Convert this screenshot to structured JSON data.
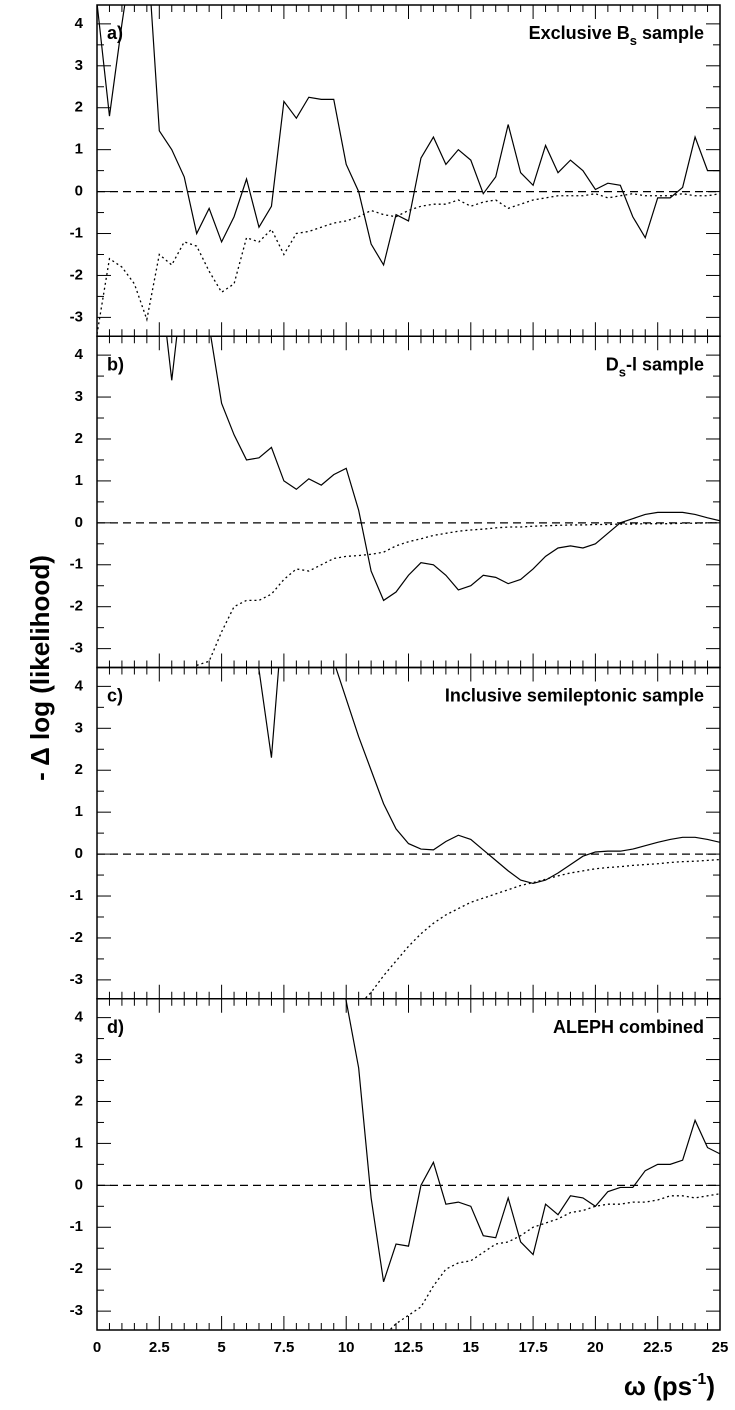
{
  "ylabel": "- Δ log (likelihood)",
  "xlabel_parts": [
    "ω (ps",
    "-1",
    ")"
  ],
  "chart_data": [
    {
      "type": "line",
      "panel_label": "a)",
      "title_parts": [
        "Exclusive B",
        "s",
        " sample"
      ],
      "xlim": [
        0,
        25
      ],
      "ylim": [
        -3.45,
        4.45
      ],
      "yticks": [
        -3,
        -2,
        -1,
        0,
        1,
        2,
        3,
        4
      ],
      "xticks": [
        0,
        2.5,
        5,
        7.5,
        10,
        12.5,
        15,
        17.5,
        20,
        22.5,
        25
      ],
      "xtick_labels_shown": false,
      "reference_line": 0,
      "x": [
        0,
        0.5,
        1,
        1.5,
        2,
        2.5,
        3,
        3.5,
        4,
        4.5,
        5,
        5.5,
        6,
        6.5,
        7,
        7.5,
        8,
        8.5,
        9,
        9.5,
        10,
        10.5,
        11,
        11.5,
        12,
        12.5,
        13,
        13.5,
        14,
        14.5,
        15,
        15.5,
        16,
        16.5,
        17,
        17.5,
        18,
        18.5,
        19,
        19.5,
        20,
        20.5,
        21,
        21.5,
        22,
        22.5,
        23,
        23.5,
        24,
        24.5,
        25
      ],
      "series": [
        {
          "color": "#000000",
          "dash": "solid",
          "values": [
            4.5,
            1.8,
            4.0,
            6,
            6,
            1.45,
            1.0,
            0.35,
            -1.0,
            -0.4,
            -1.2,
            -0.6,
            0.3,
            -0.85,
            -0.35,
            2.15,
            1.75,
            2.25,
            2.2,
            2.2,
            0.65,
            0.0,
            -1.25,
            -1.75,
            -0.55,
            -0.7,
            0.8,
            1.3,
            0.65,
            1.0,
            0.75,
            -0.05,
            0.35,
            1.6,
            0.45,
            0.15,
            1.1,
            0.45,
            0.75,
            0.5,
            0.05,
            0.2,
            0.15,
            -0.6,
            -1.1,
            -0.15,
            -0.15,
            0.1,
            1.3,
            0.5,
            0.5
          ]
        },
        {
          "color": "#000000",
          "dash": "dotted",
          "values": [
            -3.4,
            -1.6,
            -1.8,
            -2.2,
            -3.05,
            -1.5,
            -1.75,
            -1.2,
            -1.3,
            -1.9,
            -2.4,
            -2.2,
            -1.1,
            -1.2,
            -0.9,
            -1.5,
            -1.0,
            -0.95,
            -0.85,
            -0.75,
            -0.7,
            -0.6,
            -0.45,
            -0.55,
            -0.6,
            -0.45,
            -0.35,
            -0.3,
            -0.3,
            -0.2,
            -0.35,
            -0.25,
            -0.2,
            -0.4,
            -0.3,
            -0.2,
            -0.15,
            -0.1,
            -0.1,
            -0.1,
            -0.05,
            -0.15,
            -0.1,
            -0.05,
            -0.1,
            -0.1,
            -0.1,
            -0.05,
            -0.1,
            -0.1,
            -0.05
          ]
        }
      ]
    },
    {
      "type": "line",
      "panel_label": "b)",
      "title_parts": [
        "D",
        "s",
        "-l sample"
      ],
      "xlim": [
        0,
        25
      ],
      "ylim": [
        -3.45,
        4.45
      ],
      "yticks": [
        -3,
        -2,
        -1,
        0,
        1,
        2,
        3,
        4
      ],
      "xticks": [
        0,
        2.5,
        5,
        7.5,
        10,
        12.5,
        15,
        17.5,
        20,
        22.5,
        25
      ],
      "xtick_labels_shown": false,
      "reference_line": 0,
      "x": [
        0,
        0.5,
        1,
        1.5,
        2,
        2.5,
        3,
        3.5,
        4,
        4.5,
        5,
        5.5,
        6,
        6.5,
        7,
        7.5,
        8,
        8.5,
        9,
        9.5,
        10,
        10.5,
        11,
        11.5,
        12,
        12.5,
        13,
        13.5,
        14,
        14.5,
        15,
        15.5,
        16,
        16.5,
        17,
        17.5,
        18,
        18.5,
        19,
        19.5,
        20,
        20.5,
        21,
        21.5,
        22,
        22.5,
        23,
        23.5,
        24,
        24.5,
        25
      ],
      "series": [
        {
          "color": "#000000",
          "dash": "solid",
          "values": [
            null,
            null,
            null,
            null,
            null,
            6,
            3.4,
            6,
            6,
            4.7,
            2.85,
            2.1,
            1.5,
            1.55,
            1.8,
            1.0,
            0.8,
            1.05,
            0.9,
            1.15,
            1.3,
            0.3,
            -1.15,
            -1.85,
            -1.65,
            -1.25,
            -0.95,
            -1.0,
            -1.25,
            -1.6,
            -1.5,
            -1.25,
            -1.3,
            -1.45,
            -1.35,
            -1.1,
            -0.8,
            -0.6,
            -0.55,
            -0.6,
            -0.5,
            -0.25,
            0.0,
            0.1,
            0.2,
            0.25,
            0.25,
            0.25,
            0.2,
            0.12,
            0.05
          ]
        },
        {
          "color": "#000000",
          "dash": "dotted",
          "values": [
            null,
            null,
            null,
            null,
            null,
            null,
            null,
            -3.6,
            -3.4,
            -3.3,
            -2.6,
            -2.0,
            -1.85,
            -1.85,
            -1.7,
            -1.35,
            -1.1,
            -1.15,
            -1.0,
            -0.85,
            -0.8,
            -0.78,
            -0.75,
            -0.7,
            -0.55,
            -0.45,
            -0.38,
            -0.3,
            -0.25,
            -0.2,
            -0.17,
            -0.15,
            -0.12,
            -0.1,
            -0.1,
            -0.08,
            -0.07,
            -0.06,
            -0.05,
            -0.05,
            -0.04,
            -0.04,
            -0.03,
            -0.03,
            -0.02,
            -0.02,
            -0.02,
            -0.01,
            -0.01,
            0.0,
            0.0
          ]
        }
      ]
    },
    {
      "type": "line",
      "panel_label": "c)",
      "title_parts": [
        "Inclusive semileptonic sample"
      ],
      "xlim": [
        0,
        25
      ],
      "ylim": [
        -3.45,
        4.45
      ],
      "yticks": [
        -3,
        -2,
        -1,
        0,
        1,
        2,
        3,
        4
      ],
      "xticks": [
        0,
        2.5,
        5,
        7.5,
        10,
        12.5,
        15,
        17.5,
        20,
        22.5,
        25
      ],
      "xtick_labels_shown": false,
      "reference_line": 0,
      "x": [
        0,
        0.5,
        1,
        1.5,
        2,
        2.5,
        3,
        3.5,
        4,
        4.5,
        5,
        5.5,
        6,
        6.5,
        7,
        7.5,
        8,
        8.5,
        9,
        9.5,
        10,
        10.5,
        11,
        11.5,
        12,
        12.5,
        13,
        13.5,
        14,
        14.5,
        15,
        15.5,
        16,
        16.5,
        17,
        17.5,
        18,
        18.5,
        19,
        19.5,
        20,
        20.5,
        21,
        21.5,
        22,
        22.5,
        23,
        23.5,
        24,
        24.5,
        25
      ],
      "series": [
        {
          "color": "#000000",
          "dash": "solid",
          "values": [
            null,
            null,
            null,
            null,
            null,
            null,
            null,
            null,
            null,
            null,
            null,
            null,
            6,
            4.4,
            2.3,
            6,
            null,
            null,
            null,
            4.6,
            3.7,
            2.8,
            2.0,
            1.2,
            0.6,
            0.25,
            0.12,
            0.1,
            0.3,
            0.45,
            0.35,
            0.1,
            -0.15,
            -0.4,
            -0.62,
            -0.7,
            -0.62,
            -0.45,
            -0.25,
            -0.05,
            0.05,
            0.07,
            0.07,
            0.12,
            0.2,
            0.28,
            0.35,
            0.4,
            0.4,
            0.35,
            0.28
          ]
        },
        {
          "color": "#000000",
          "dash": "dotted",
          "values": [
            null,
            null,
            null,
            null,
            null,
            null,
            null,
            null,
            null,
            null,
            null,
            null,
            null,
            null,
            null,
            null,
            null,
            null,
            null,
            null,
            null,
            -3.6,
            -3.3,
            -2.9,
            -2.55,
            -2.2,
            -1.9,
            -1.65,
            -1.45,
            -1.3,
            -1.15,
            -1.05,
            -0.95,
            -0.85,
            -0.75,
            -0.68,
            -0.6,
            -0.52,
            -0.45,
            -0.4,
            -0.35,
            -0.32,
            -0.3,
            -0.27,
            -0.25,
            -0.23,
            -0.2,
            -0.18,
            -0.17,
            -0.15,
            -0.13
          ]
        }
      ]
    },
    {
      "type": "line",
      "panel_label": "d)",
      "title_parts": [
        "ALEPH combined"
      ],
      "xlim": [
        0,
        25
      ],
      "ylim": [
        -3.45,
        4.45
      ],
      "yticks": [
        -3,
        -2,
        -1,
        0,
        1,
        2,
        3,
        4
      ],
      "xticks": [
        0,
        2.5,
        5,
        7.5,
        10,
        12.5,
        15,
        17.5,
        20,
        22.5,
        25
      ],
      "xtick_labels_shown": true,
      "reference_line": 0,
      "x": [
        0,
        0.5,
        1,
        1.5,
        2,
        2.5,
        3,
        3.5,
        4,
        4.5,
        5,
        5.5,
        6,
        6.5,
        7,
        7.5,
        8,
        8.5,
        9,
        9.5,
        10,
        10.5,
        11,
        11.5,
        12,
        12.5,
        13,
        13.5,
        14,
        14.5,
        15,
        15.5,
        16,
        16.5,
        17,
        17.5,
        18,
        18.5,
        19,
        19.5,
        20,
        20.5,
        21,
        21.5,
        22,
        22.5,
        23,
        23.5,
        24,
        24.5,
        25
      ],
      "series": [
        {
          "color": "#000000",
          "dash": "solid",
          "values": [
            null,
            null,
            null,
            null,
            null,
            null,
            null,
            null,
            null,
            null,
            null,
            null,
            null,
            null,
            null,
            null,
            null,
            null,
            null,
            6,
            4.4,
            2.8,
            -0.3,
            -2.3,
            -1.4,
            -1.45,
            0.0,
            0.55,
            -0.45,
            -0.4,
            -0.5,
            -1.2,
            -1.25,
            -0.3,
            -1.35,
            -1.65,
            -0.45,
            -0.7,
            -0.25,
            -0.3,
            -0.5,
            -0.15,
            -0.05,
            -0.05,
            0.35,
            0.5,
            0.5,
            0.6,
            1.55,
            0.9,
            0.75
          ]
        },
        {
          "color": "#000000",
          "dash": "dotted",
          "values": [
            null,
            null,
            null,
            null,
            null,
            null,
            null,
            null,
            null,
            null,
            null,
            null,
            null,
            null,
            null,
            null,
            null,
            null,
            null,
            null,
            null,
            null,
            null,
            -3.6,
            -3.3,
            -3.1,
            -2.9,
            -2.4,
            -2.0,
            -1.85,
            -1.8,
            -1.6,
            -1.4,
            -1.35,
            -1.2,
            -1.0,
            -0.9,
            -0.8,
            -0.65,
            -0.6,
            -0.5,
            -0.45,
            -0.45,
            -0.4,
            -0.4,
            -0.35,
            -0.25,
            -0.25,
            -0.3,
            -0.25,
            -0.2
          ]
        }
      ]
    }
  ]
}
